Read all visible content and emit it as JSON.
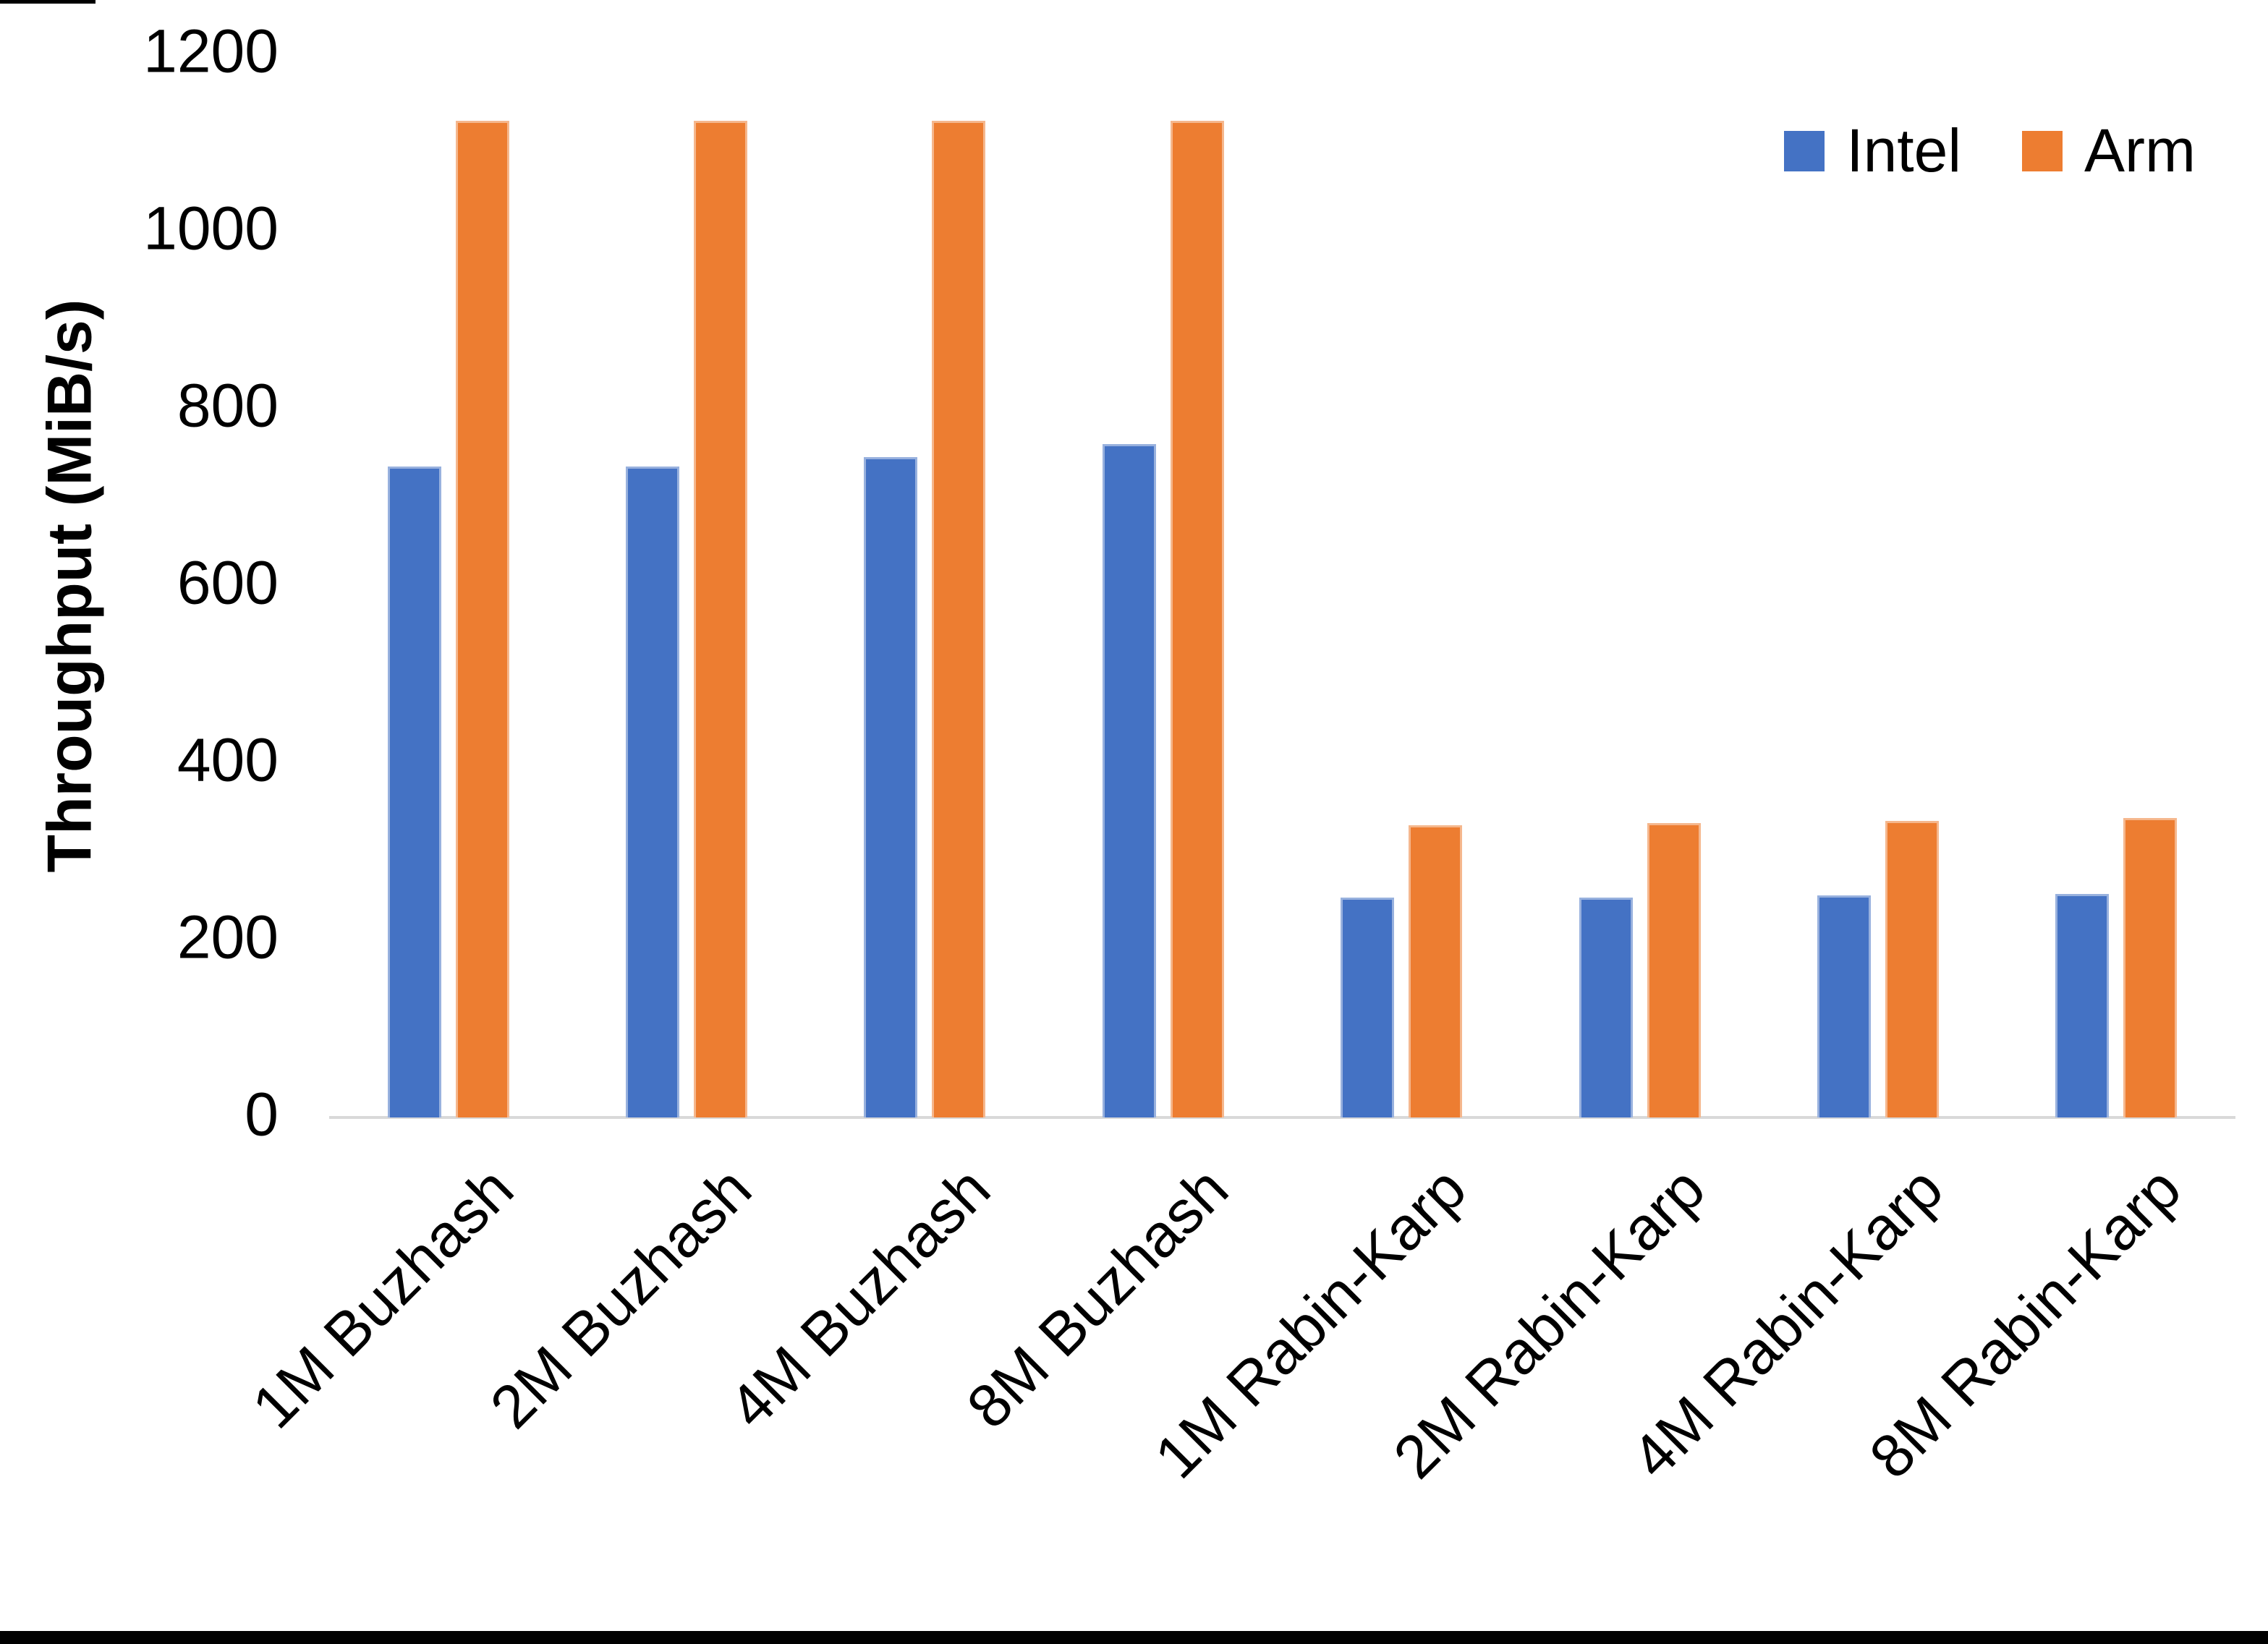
{
  "chart_data": {
    "type": "bar",
    "title": "",
    "xlabel": "",
    "ylabel": "Throughput (MiB/s)",
    "ylim": [
      0,
      1200
    ],
    "y_ticks": [
      0,
      200,
      400,
      600,
      800,
      1000,
      1200
    ],
    "grid": false,
    "legend_position": "top-right",
    "categories": [
      "1M Buzhash",
      "2M Buzhash",
      "4M Buzhash",
      "8M Buzhash",
      "1M Rabin-Karp",
      "2M Rabin-Karp",
      "4M Rabin-Karp",
      "8M Rabin-Karp"
    ],
    "series": [
      {
        "name": "Intel",
        "color": "#4472C4",
        "values": [
          735,
          735,
          745,
          760,
          248,
          248,
          251,
          252
        ]
      },
      {
        "name": "Arm",
        "color": "#ED7D31",
        "values": [
          1125,
          1125,
          1125,
          1125,
          330,
          332,
          335,
          338
        ]
      }
    ]
  },
  "colors": {
    "axis_line": "#d9d9d9",
    "text": "#000000",
    "background": "#ffffff",
    "intel": "#4472C4",
    "arm": "#ED7D31"
  }
}
